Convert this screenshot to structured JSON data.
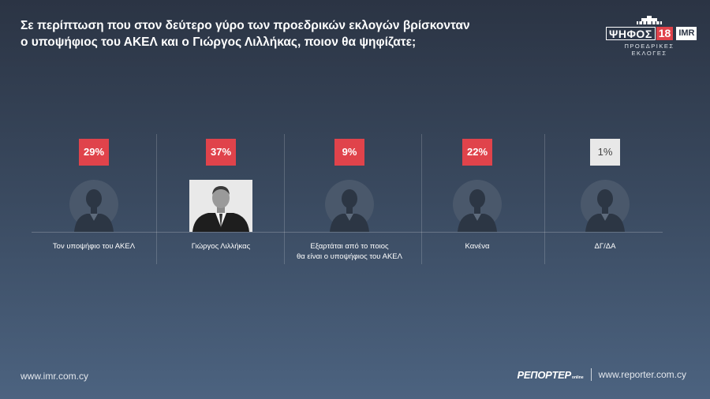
{
  "header": {
    "title_line1": "Σε περίπτωση που στον δεύτερο γύρο των προεδρικών εκλογών βρίσκονταν",
    "title_line2": "ο υποψήφιος του ΑΚΕΛ και ο Γιώργος Λιλλήκας, ποιον θα ψηφίζατε;"
  },
  "logo": {
    "main": "ΨΗΦΟΣ",
    "number": "18",
    "partner": "IMR",
    "subtitle": "ΠΡΟΕΔΡΙΚΕΣ ΕΚΛΟΓΕΣ"
  },
  "chart_data": {
    "type": "bar",
    "title": "Σε περίπτωση που στον δεύτερο γύρο των προεδρικών εκλογών βρίσκονταν ο υποψήφιος του ΑΚΕΛ και ο Γιώργος Λιλλήκας, ποιον θα ψηφίζατε;",
    "categories": [
      "Τον υποψήφιο του ΑΚΕΛ",
      "Γιώργος Λιλλήκας",
      "Εξαρτάται από το ποιος θα είναι ο υποψήφιος του ΑΚΕΛ",
      "Κανένα",
      "ΔΓ/ΔΑ"
    ],
    "values": [
      29,
      37,
      9,
      22,
      1
    ],
    "value_labels": [
      "29%",
      "37%",
      "9%",
      "22%",
      "1%"
    ],
    "label_lines": [
      [
        "Τον υποψήφιο του ΑΚΕΛ"
      ],
      [
        "Γιώργος Λιλλήκας"
      ],
      [
        "Εξαρτάται από το ποιος",
        "θα είναι ο υποψήφιος του ΑΚΕΛ"
      ],
      [
        "Κανένα"
      ],
      [
        "ΔΓ/ΔΑ"
      ]
    ],
    "badge_colors": [
      "#e0434b",
      "#e0434b",
      "#e0434b",
      "#e0434b",
      "#e8e8e8"
    ],
    "highlight": "photo-candidate-2"
  },
  "footer": {
    "left_url": "www.imr.com.cy",
    "reporter_logo": "ΡΕΠΟΡΤΕΡ",
    "reporter_logo_suffix": "online",
    "right_url": "www.reporter.com.cy"
  }
}
